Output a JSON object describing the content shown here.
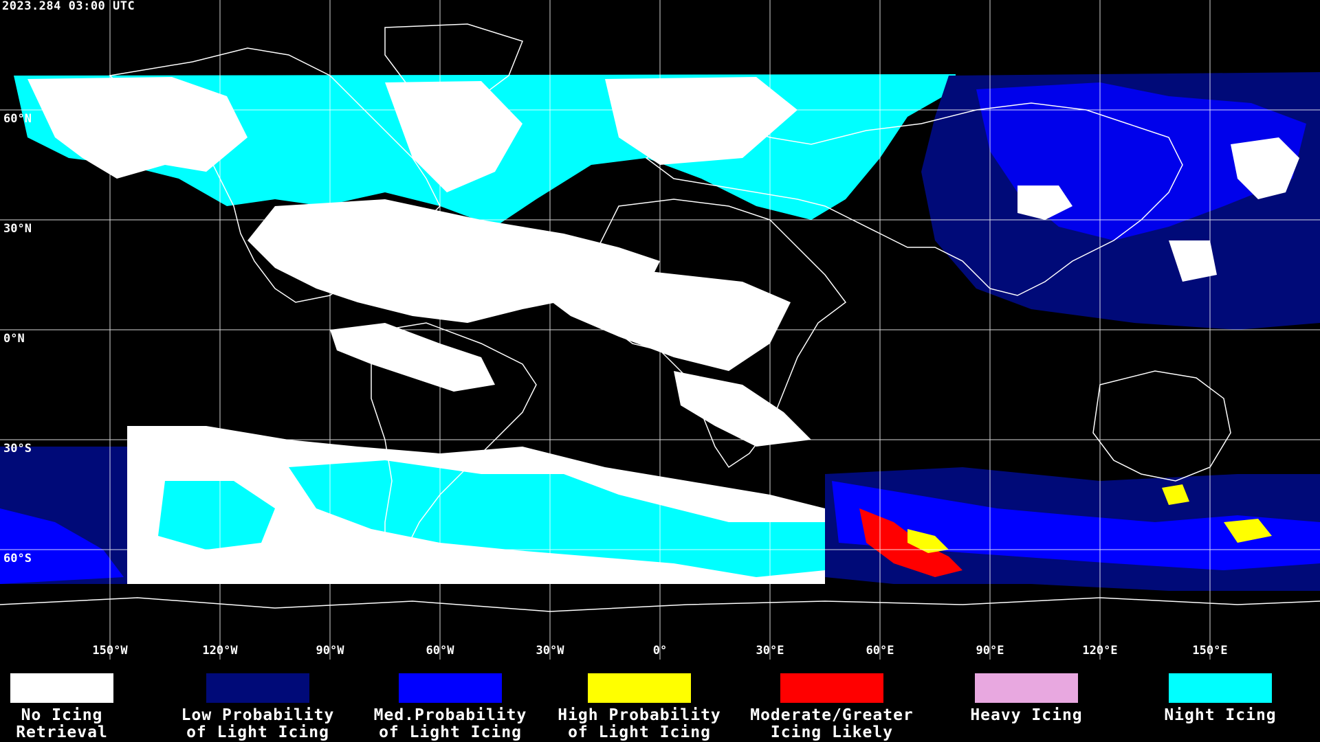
{
  "timestamp": "2023.284 03:00 UTC",
  "latitude_labels": [
    "60°N",
    "30°N",
    "0°N",
    "30°S",
    "60°S"
  ],
  "longitude_labels": [
    "150°W",
    "120°W",
    "90°W",
    "60°W",
    "30°W",
    "0°",
    "30°E",
    "60°E",
    "90°E",
    "120°E",
    "150°E"
  ],
  "legend": [
    {
      "line1": "No Icing",
      "line2": "Retrieval",
      "color": "#ffffff"
    },
    {
      "line1": "Low Probability",
      "line2": "of Light Icing",
      "color": "#000a78"
    },
    {
      "line1": "Med.Probability",
      "line2": "of Light Icing",
      "color": "#0000ff"
    },
    {
      "line1": "High Probability",
      "line2": "of Light Icing",
      "color": "#ffff00"
    },
    {
      "line1": "Moderate/Greater",
      "line2": "Icing Likely",
      "color": "#ff0000"
    },
    {
      "line1": "Heavy Icing",
      "line2": "",
      "color": "#e8a8e0"
    },
    {
      "line1": "Night Icing",
      "line2": "",
      "color": "#00ffff"
    }
  ],
  "colors": {
    "background": "#000000",
    "grid": "#ffffff",
    "coastline": "#ffffff"
  }
}
